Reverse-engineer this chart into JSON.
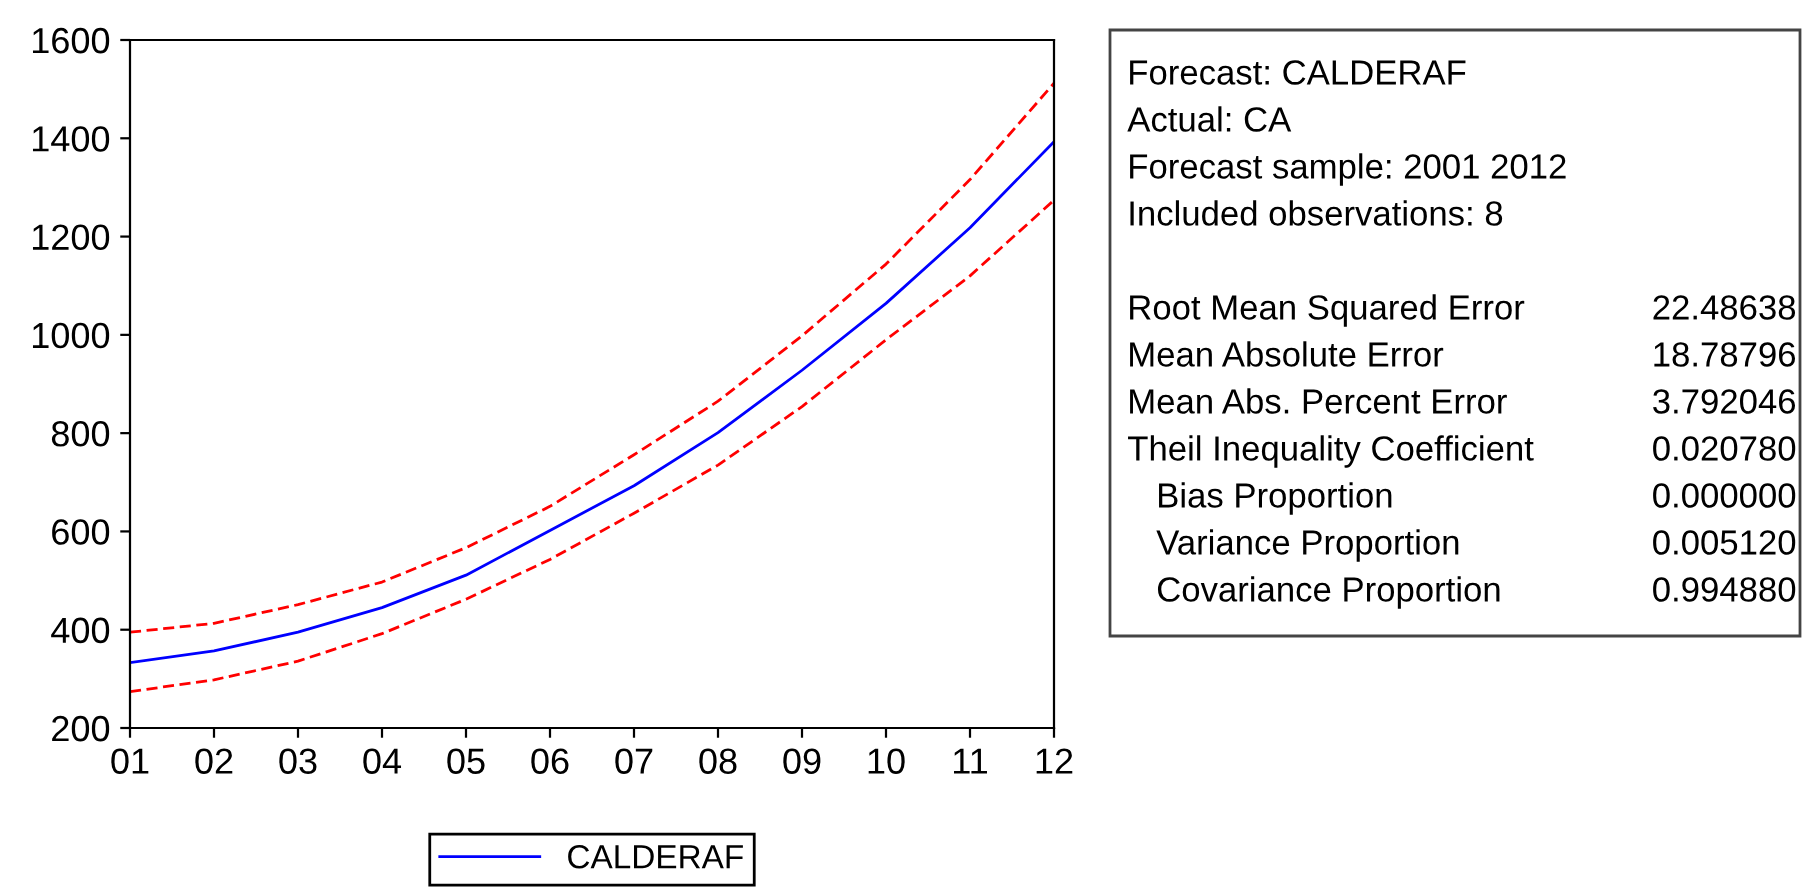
{
  "chart_data": [
    {
      "type": "line",
      "categories": [
        "01",
        "02",
        "03",
        "04",
        "05",
        "06",
        "07",
        "08",
        "09",
        "10",
        "11",
        "12"
      ],
      "series": [
        {
          "name": "CALDERAF",
          "color": "#0000ff",
          "line_style": "solid",
          "values": [
            333,
            357,
            395,
            445,
            511,
            602,
            693,
            801,
            928,
            1064,
            1218,
            1393
          ]
        },
        {
          "color": "#ff0000",
          "line_style": "dashed",
          "values": [
            395,
            413,
            451,
            497,
            567,
            651,
            756,
            865,
            998,
            1144,
            1316,
            1512
          ]
        },
        {
          "color": "#ff0000",
          "line_style": "dashed",
          "values": [
            274,
            298,
            336,
            392,
            462,
            543,
            637,
            735,
            854,
            990,
            1120,
            1274
          ]
        }
      ],
      "ylim": [
        200,
        1600
      ],
      "yticks": [
        200,
        400,
        600,
        800,
        1000,
        1200,
        1400,
        1600
      ],
      "grid": false,
      "legend": "bottom"
    },
    {
      "type": "other",
      "annotations": [
        "Forecast: CALDERAF",
        "Actual: CA",
        "Forecast sample: 2001 2012",
        "Included observations: 8"
      ],
      "categories": [
        "Root Mean Squared Error",
        "Mean Absolute Error",
        "Mean Abs. Percent Error",
        "Theil Inequality Coefficient",
        "   Bias Proportion",
        "   Variance Proportion",
        "   Covariance Proportion"
      ],
      "value_labels": [
        "22.48638",
        "18.78796",
        "3.792046",
        "0.020780",
        "0.000000",
        "0.005120",
        "0.994880"
      ]
    }
  ]
}
